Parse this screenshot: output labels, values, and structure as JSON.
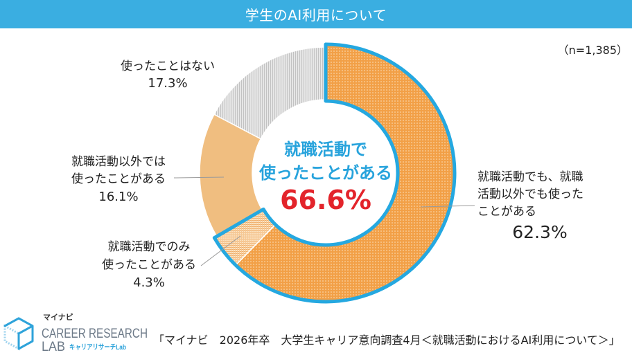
{
  "chart_data": {
    "type": "pie",
    "donut": true,
    "title": "学生のAI利用について",
    "sample_size_label": "（n=1,385）",
    "slices": [
      {
        "label_lines": [
          "就職活動でも、就職",
          "活動以外でも使った",
          "ことがある"
        ],
        "value": 62.3,
        "value_label": "62.3%",
        "color": "#f2a047",
        "highlighted": true
      },
      {
        "label_lines": [
          "就職活動でのみ",
          "使ったことがある"
        ],
        "value": 4.3,
        "value_label": "4.3%",
        "color": "#fbe2c1",
        "highlighted": true
      },
      {
        "label_lines": [
          "就職活動以外では",
          "使ったことがある"
        ],
        "value": 16.1,
        "value_label": "16.1%",
        "color": "#f0be80",
        "highlighted": false
      },
      {
        "label_lines": [
          "使ったことはない"
        ],
        "value": 17.3,
        "value_label": "17.3%",
        "color": "#e6e6e6",
        "highlighted": false
      }
    ],
    "highlight": {
      "label_lines": [
        "就職活動で",
        "使ったことがある"
      ],
      "value": 66.6,
      "value_label": "66.6%",
      "outline_color": "#25a8e0",
      "label_color": "#27a3dc",
      "value_color": "#e3242b"
    }
  },
  "theme": {
    "header_background": "#3aaee1",
    "header_text": "#ffffff",
    "text": "#222222",
    "leader_line": "#9a9a9a"
  },
  "footer": {
    "source": "「マイナビ　2026年卒　大学生キャリア意向調査4月＜就職活動におけるAI利用について＞」",
    "logo": {
      "icon": "cube-icon",
      "brand": "マイナビ",
      "name_line1": "CAREER RESEARCH",
      "name_line2": "LAB",
      "sub": "キャリアリサーチLab",
      "brand_color": "#333333",
      "text_color": "#6d7a88",
      "accent_color": "#2ea3da",
      "accent_light": "#9fd3ee"
    }
  }
}
